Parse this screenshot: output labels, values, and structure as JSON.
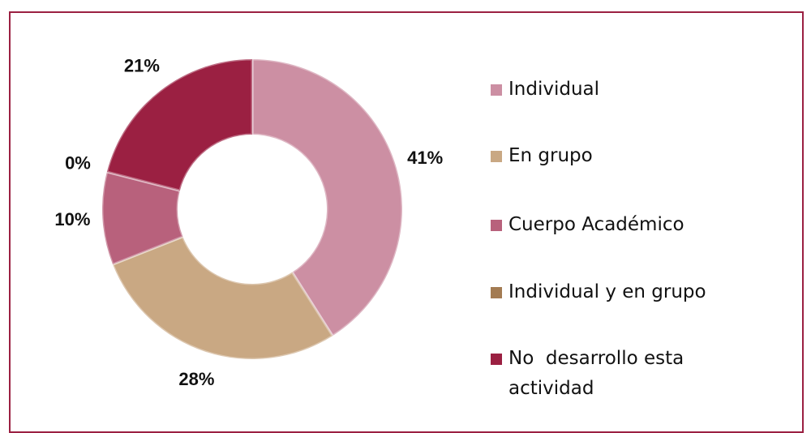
{
  "chart_data": {
    "type": "donut",
    "categories": [
      "Individual",
      "En grupo",
      "Cuerpo Académico",
      "Individual y en grupo",
      "No  desarrollo esta actividad"
    ],
    "values": [
      41,
      28,
      10,
      0,
      21
    ],
    "value_labels": [
      "41%",
      "28%",
      "10%",
      "0%",
      "21%"
    ],
    "colors": [
      "#cc8fa3",
      "#c9a883",
      "#b8617c",
      "#a37b52",
      "#9b2042"
    ],
    "legend": "right"
  }
}
